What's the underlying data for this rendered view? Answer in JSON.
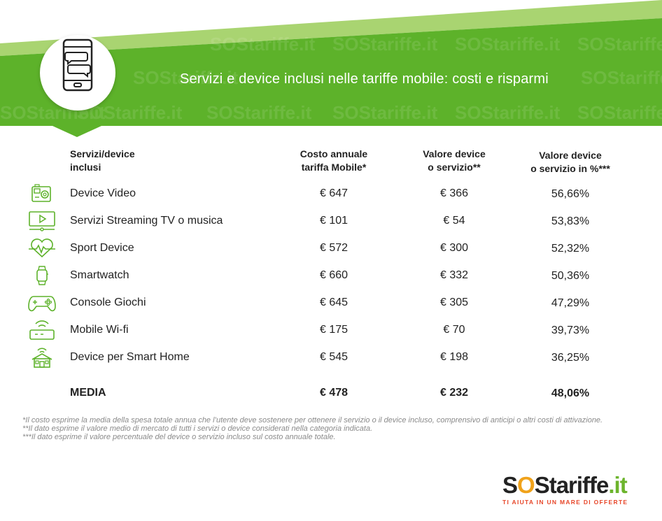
{
  "header": {
    "title": "Servizi e device inclusi nelle tariffe mobile: costi e risparmi",
    "watermark": "SOStariffe.it",
    "colors": {
      "green": "#5db22a",
      "light_green": "#a9d471",
      "white": "#ffffff"
    },
    "icon": "smartphone-chat-icon"
  },
  "table": {
    "headers": {
      "services": [
        "Servizi/device",
        "inclusi"
      ],
      "cost": [
        "Costo annuale",
        "tariffa Mobile*"
      ],
      "value": [
        "Valore device",
        "o servizio**"
      ],
      "percent": [
        "Valore device",
        "o servizio in %***"
      ]
    },
    "rows": [
      {
        "icon": "action-camera-icon",
        "name": "Device Video",
        "cost": "€ 647",
        "value": "€ 366",
        "percent": "56,66%"
      },
      {
        "icon": "streaming-tv-icon",
        "name": "Servizi Streaming TV o musica",
        "cost": "€ 101",
        "value": "€ 54",
        "percent": "53,83%"
      },
      {
        "icon": "heartbeat-icon",
        "name": "Sport Device",
        "cost": "€ 572",
        "value": "€ 300",
        "percent": "52,32%"
      },
      {
        "icon": "smartwatch-icon",
        "name": "Smartwatch",
        "cost": "€ 660",
        "value": "€ 332",
        "percent": "50,36%"
      },
      {
        "icon": "gamepad-icon",
        "name": "Console Giochi",
        "cost": "€ 645",
        "value": "€ 305",
        "percent": "47,29%"
      },
      {
        "icon": "wifi-router-icon",
        "name": "Mobile Wi-fi",
        "cost": "€ 175",
        "value": "€ 70",
        "percent": "39,73%"
      },
      {
        "icon": "smart-home-icon",
        "name": "Device per Smart Home",
        "cost": "€ 545",
        "value": "€ 198",
        "percent": "36,25%"
      }
    ],
    "average": {
      "name": "MEDIA",
      "cost": "€ 478",
      "value": "€ 232",
      "percent": "48,06%"
    }
  },
  "notes": [
    "*Il costo esprime la media della spesa totale annua che l’utente deve sostenere per ottenere il servizio o il device incluso, comprensivo di anticipi o altri costi di attivazione.",
    "**Il dato esprime il valore medio di mercato di tutti i servizi o device considerati nella categoria indicata.",
    "***Il dato esprime il valore percentuale del device o servizio incluso sul costo annuale totale."
  ],
  "logo": {
    "brand_s1": "S",
    "brand_o": "O",
    "brand_s2": "S",
    "brand_tariffe": "tariffe",
    "brand_it": ".it",
    "tagline": "TI AIUTA IN UN MARE DI OFFERTE"
  }
}
